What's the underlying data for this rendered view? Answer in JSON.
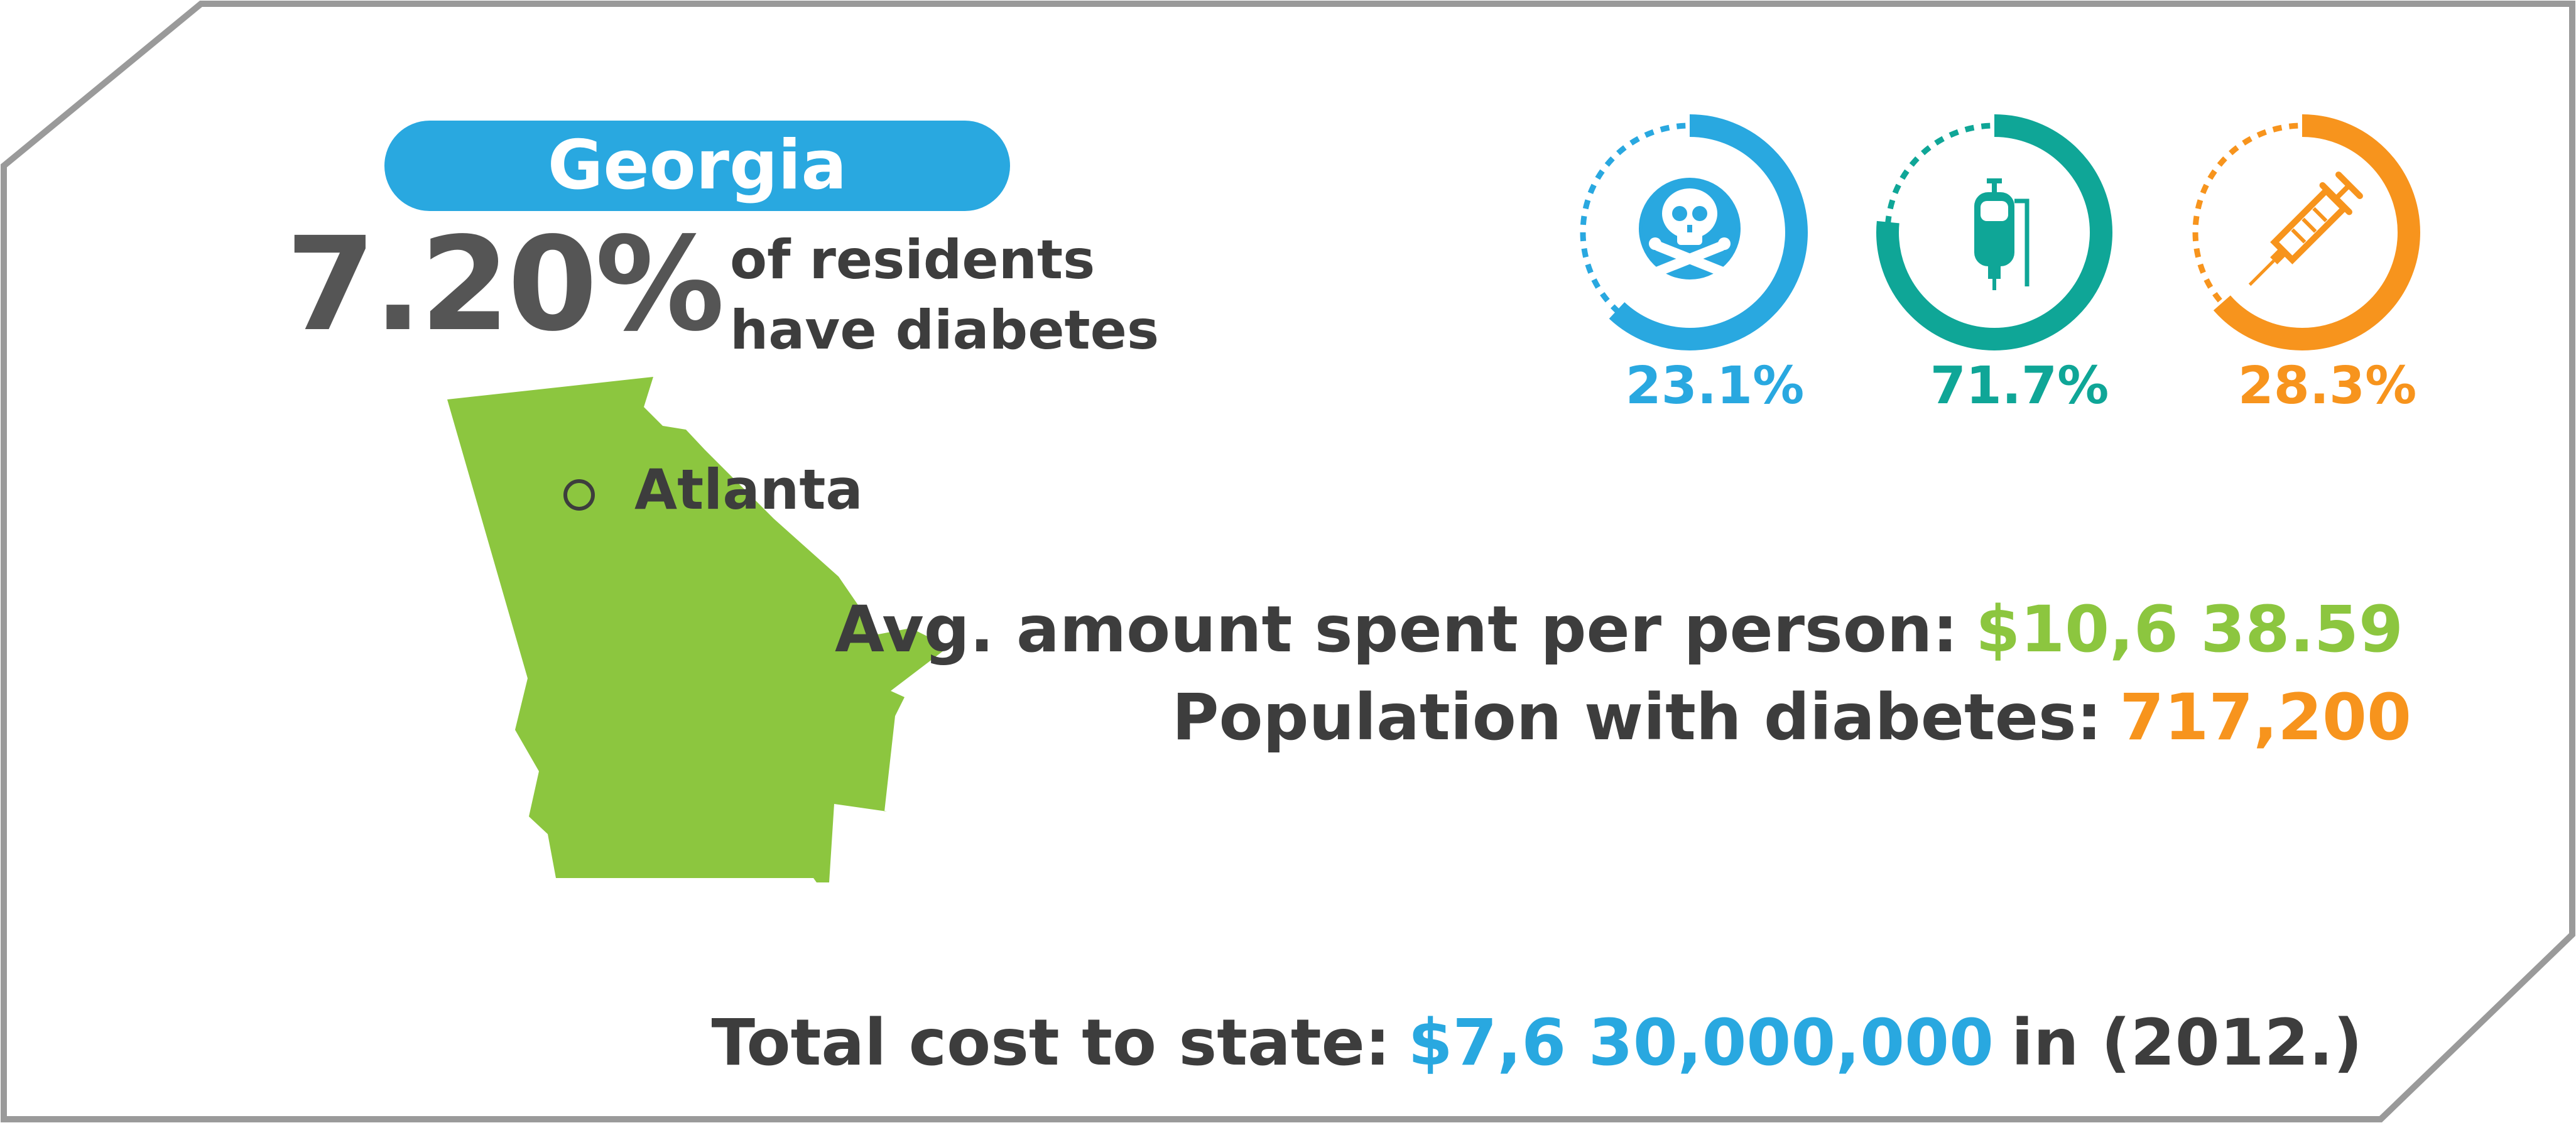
{
  "colors": {
    "blue": "#29a8e0",
    "teal": "#0fa697",
    "orange": "#f7941d",
    "green": "#8cc63f",
    "text_dark": "#3d3d3d",
    "text_grey": "#555555",
    "frame": "#9a9a9a"
  },
  "state": {
    "name": "Georgia",
    "percent": "7.20%",
    "percent_desc_line1": "of residents",
    "percent_desc_line2": "have diabetes",
    "city": "Atlanta"
  },
  "rings": [
    {
      "icon": "skull-crossbones-icon",
      "label": "23.1%",
      "value": 0.231,
      "color": "blue"
    },
    {
      "icon": "iv-bag-icon",
      "label": "71.7%",
      "value": 0.717,
      "color": "teal"
    },
    {
      "icon": "syringe-icon",
      "label": "28.3%",
      "value": 0.283,
      "color": "orange"
    }
  ],
  "stats": {
    "avg_label": "Avg. amount spent per person:",
    "avg_value": "$10,6 38.59",
    "pop_label": "Population with diabetes:",
    "pop_value": "717,200",
    "total_label": "Total cost to state:",
    "total_value": "$7,6 30,000,000",
    "total_suffix": "in (2012.)"
  }
}
